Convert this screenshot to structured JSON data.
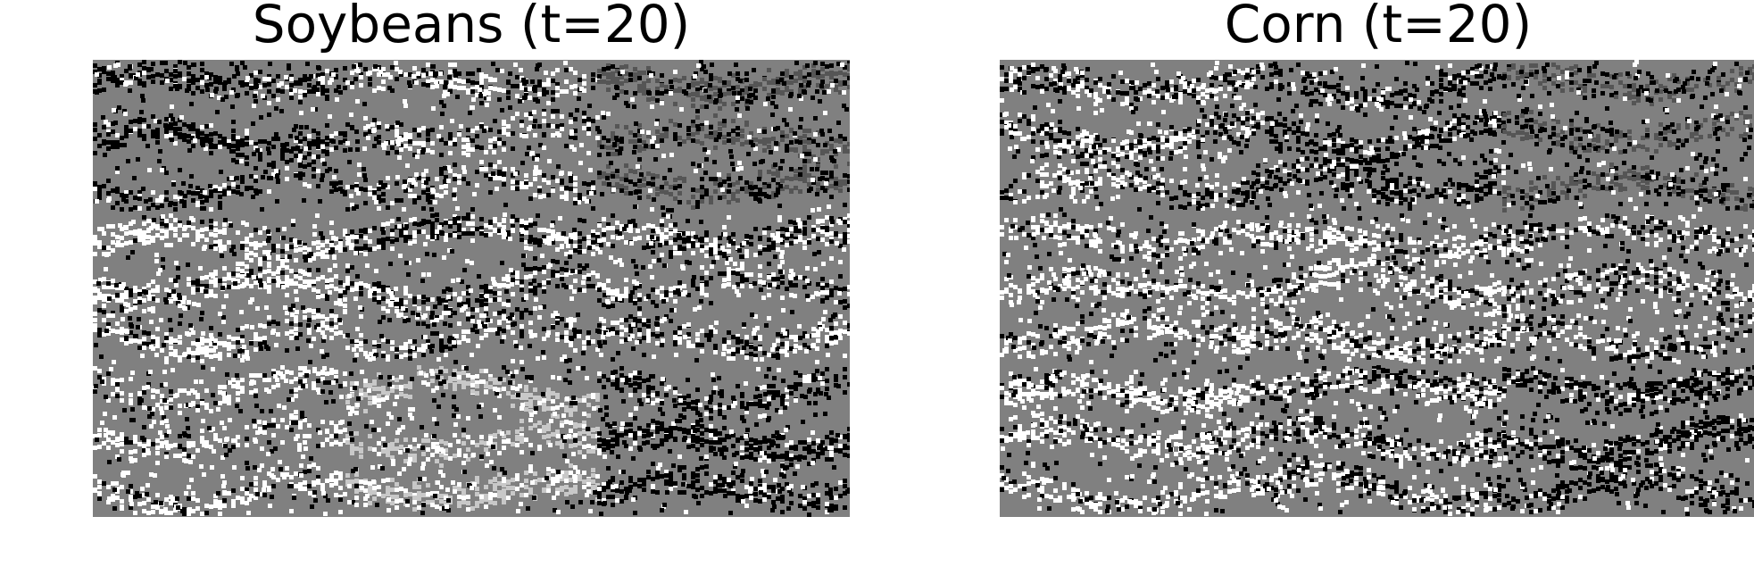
{
  "figure": {
    "panels": [
      {
        "title": "Soybeans (t=20)"
      },
      {
        "title": "Corn (t=20)"
      }
    ]
  },
  "colors": {
    "background": "#ffffff",
    "base_gray": "#808080",
    "dark": "#000000",
    "light": "#ffffff",
    "mid_light": "#c8c8c8",
    "mid_dark": "#555555"
  }
}
